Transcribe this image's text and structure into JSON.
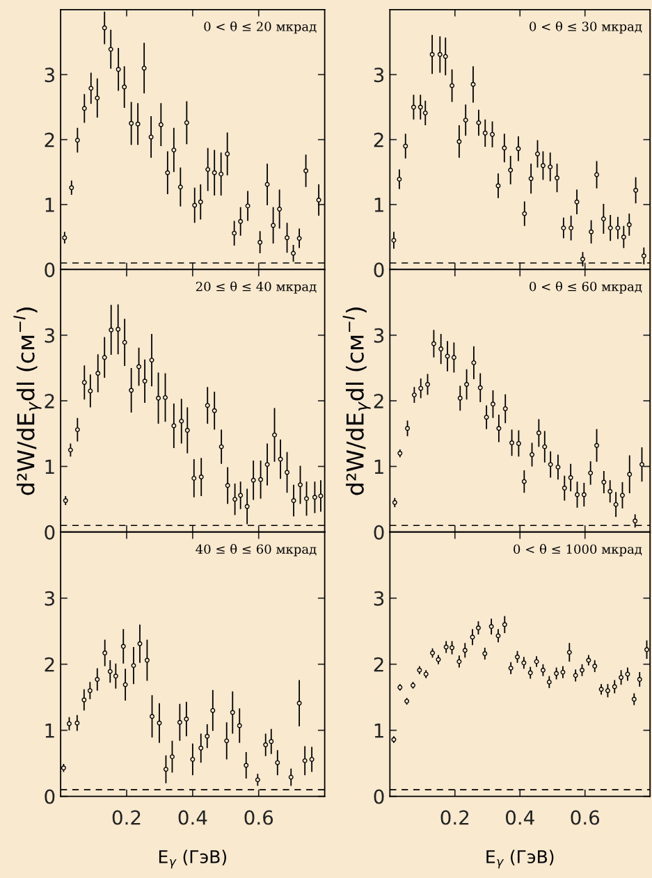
{
  "chart_data": [
    {
      "type": "scatter",
      "title": "0 < θ ≤ 20 мкрад",
      "xlim": [
        0,
        0.8
      ],
      "xticks": [
        {
          "value": 0.2,
          "label": null
        },
        {
          "value": 0.4,
          "label": null
        },
        {
          "value": 0.6,
          "label": null
        }
      ],
      "ylim": [
        0,
        4
      ],
      "yticks": [
        0,
        1,
        2,
        3
      ],
      "tick_labels": "y",
      "marker": "circle",
      "color": "#000000",
      "x": [
        0.012,
        0.033,
        0.051,
        0.072,
        0.092,
        0.111,
        0.133,
        0.152,
        0.175,
        0.193,
        0.214,
        0.234,
        0.253,
        0.274,
        0.304,
        0.324,
        0.343,
        0.363,
        0.382,
        0.406,
        0.424,
        0.446,
        0.466,
        0.486,
        0.505,
        0.526,
        0.545,
        0.567,
        0.604,
        0.626,
        0.644,
        0.663,
        0.686,
        0.705,
        0.723,
        0.743,
        0.782
      ],
      "values": [
        0.49,
        1.26,
        1.99,
        2.48,
        2.79,
        2.64,
        3.72,
        3.39,
        3.08,
        2.81,
        2.25,
        2.24,
        3.1,
        2.04,
        2.23,
        1.49,
        1.84,
        1.27,
        2.26,
        0.99,
        1.04,
        1.54,
        1.49,
        1.47,
        1.78,
        0.56,
        0.74,
        0.98,
        0.42,
        1.31,
        0.68,
        0.93,
        0.49,
        0.25,
        0.48,
        1.52,
        1.07
      ],
      "errors": [
        0.09,
        0.11,
        0.19,
        0.22,
        0.24,
        0.3,
        0.25,
        0.3,
        0.33,
        0.32,
        0.33,
        0.32,
        0.39,
        0.32,
        0.33,
        0.33,
        0.34,
        0.3,
        0.33,
        0.27,
        0.27,
        0.33,
        0.35,
        0.33,
        0.33,
        0.19,
        0.22,
        0.23,
        0.17,
        0.32,
        0.28,
        0.3,
        0.23,
        0.13,
        0.15,
        0.25,
        0.24
      ],
      "ref_lines": [
        {
          "axis": "y",
          "value": 0.1,
          "line_style": "dashed",
          "color": "#000000"
        }
      ]
    },
    {
      "type": "scatter",
      "title": "0 < θ ≤ 30 мкрад",
      "xlim": [
        0,
        0.8
      ],
      "xticks": [
        {
          "value": 0.2,
          "label": null
        },
        {
          "value": 0.4,
          "label": null
        },
        {
          "value": 0.6,
          "label": null
        }
      ],
      "ylim": [
        0,
        4
      ],
      "yticks": [
        0,
        1,
        2,
        3
      ],
      "tick_labels": "y",
      "marker": "circle",
      "color": "#000000",
      "x": [
        0.012,
        0.029,
        0.048,
        0.073,
        0.094,
        0.109,
        0.13,
        0.154,
        0.171,
        0.191,
        0.213,
        0.233,
        0.256,
        0.273,
        0.293,
        0.315,
        0.333,
        0.352,
        0.371,
        0.395,
        0.414,
        0.434,
        0.454,
        0.471,
        0.493,
        0.514,
        0.534,
        0.557,
        0.575,
        0.593,
        0.619,
        0.636,
        0.657,
        0.678,
        0.701,
        0.719,
        0.736,
        0.756,
        0.781
      ],
      "values": [
        0.45,
        1.39,
        1.9,
        2.5,
        2.5,
        2.41,
        3.31,
        3.31,
        3.28,
        2.83,
        1.97,
        2.3,
        2.85,
        2.26,
        2.1,
        2.08,
        1.29,
        1.87,
        1.53,
        1.86,
        0.86,
        1.4,
        1.78,
        1.6,
        1.58,
        1.41,
        0.64,
        0.64,
        1.04,
        0.16,
        0.58,
        1.46,
        0.78,
        0.64,
        0.64,
        0.5,
        0.69,
        1.22,
        0.21
      ],
      "errors": [
        0.13,
        0.15,
        0.19,
        0.19,
        0.19,
        0.19,
        0.3,
        0.28,
        0.29,
        0.25,
        0.25,
        0.24,
        0.28,
        0.2,
        0.21,
        0.2,
        0.19,
        0.22,
        0.22,
        0.19,
        0.19,
        0.23,
        0.21,
        0.22,
        0.22,
        0.22,
        0.16,
        0.19,
        0.19,
        0.11,
        0.18,
        0.21,
        0.23,
        0.2,
        0.17,
        0.17,
        0.17,
        0.2,
        0.13
      ],
      "ref_lines": [
        {
          "axis": "y",
          "value": 0.1,
          "line_style": "dashed",
          "color": "#000000"
        }
      ]
    },
    {
      "type": "scatter",
      "title": "20 ≤ θ ≤ 40 мкрад",
      "ylabel": "d²W/dE$_{γ}$dl (см$^{−I}$)",
      "xlim": [
        0,
        0.8
      ],
      "xticks": [
        {
          "value": 0.2,
          "label": null
        },
        {
          "value": 0.4,
          "label": null
        },
        {
          "value": 0.6,
          "label": null
        }
      ],
      "ylim": [
        0,
        4
      ],
      "yticks": [
        0,
        1,
        2,
        3
      ],
      "tick_labels": "y",
      "marker": "circle",
      "color": "#000000",
      "x": [
        0.015,
        0.03,
        0.051,
        0.072,
        0.09,
        0.113,
        0.133,
        0.153,
        0.174,
        0.194,
        0.214,
        0.237,
        0.255,
        0.276,
        0.296,
        0.317,
        0.343,
        0.366,
        0.384,
        0.404,
        0.426,
        0.445,
        0.466,
        0.487,
        0.506,
        0.528,
        0.545,
        0.565,
        0.584,
        0.606,
        0.626,
        0.648,
        0.666,
        0.686,
        0.706,
        0.726,
        0.745,
        0.77,
        0.788
      ],
      "values": [
        0.48,
        1.25,
        1.56,
        2.28,
        2.15,
        2.42,
        2.66,
        3.08,
        3.09,
        2.89,
        2.16,
        2.52,
        2.3,
        2.62,
        2.04,
        2.05,
        1.62,
        1.69,
        1.55,
        0.82,
        0.84,
        1.93,
        1.85,
        1.3,
        0.71,
        0.5,
        0.56,
        0.39,
        0.79,
        0.8,
        1.03,
        1.48,
        1.11,
        0.91,
        0.48,
        0.72,
        0.51,
        0.53,
        0.55
      ],
      "errors": [
        0.07,
        0.1,
        0.18,
        0.26,
        0.25,
        0.29,
        0.31,
        0.38,
        0.38,
        0.36,
        0.34,
        0.29,
        0.33,
        0.4,
        0.39,
        0.37,
        0.34,
        0.34,
        0.35,
        0.29,
        0.29,
        0.28,
        0.29,
        0.26,
        0.28,
        0.24,
        0.21,
        0.27,
        0.3,
        0.29,
        0.32,
        0.41,
        0.3,
        0.31,
        0.24,
        0.29,
        0.26,
        0.24,
        0.24
      ],
      "ref_lines": [
        {
          "axis": "y",
          "value": 0.1,
          "line_style": "dashed",
          "color": "#000000"
        }
      ]
    },
    {
      "type": "scatter",
      "title": "0 < θ ≤ 60 мкрад",
      "ylabel": "d²W/dE$_{γ}$dl (см$^{−I}$)",
      "xlim": [
        0,
        0.8
      ],
      "xticks": [
        {
          "value": 0.2,
          "label": null
        },
        {
          "value": 0.4,
          "label": null
        },
        {
          "value": 0.6,
          "label": null
        }
      ],
      "ylim": [
        0,
        4
      ],
      "yticks": [
        0,
        1,
        2,
        3
      ],
      "tick_labels": "y",
      "marker": "circle",
      "color": "#000000",
      "x": [
        0.015,
        0.031,
        0.054,
        0.075,
        0.095,
        0.116,
        0.135,
        0.157,
        0.177,
        0.197,
        0.216,
        0.236,
        0.258,
        0.278,
        0.297,
        0.317,
        0.335,
        0.355,
        0.375,
        0.396,
        0.413,
        0.437,
        0.458,
        0.476,
        0.494,
        0.517,
        0.537,
        0.556,
        0.576,
        0.597,
        0.617,
        0.636,
        0.658,
        0.677,
        0.695,
        0.715,
        0.737,
        0.754,
        0.775
      ],
      "values": [
        0.45,
        1.2,
        1.58,
        2.09,
        2.19,
        2.25,
        2.87,
        2.79,
        2.68,
        2.66,
        2.04,
        2.25,
        2.58,
        2.2,
        1.75,
        1.95,
        1.58,
        1.88,
        1.36,
        1.35,
        0.77,
        1.18,
        1.51,
        1.3,
        1.03,
        0.99,
        0.67,
        0.83,
        0.57,
        0.57,
        0.9,
        1.32,
        0.76,
        0.62,
        0.42,
        0.56,
        0.88,
        0.17,
        1.03
      ],
      "errors": [
        0.07,
        0.06,
        0.12,
        0.12,
        0.15,
        0.16,
        0.21,
        0.23,
        0.23,
        0.23,
        0.19,
        0.23,
        0.25,
        0.22,
        0.18,
        0.21,
        0.21,
        0.22,
        0.2,
        0.2,
        0.17,
        0.18,
        0.21,
        0.24,
        0.2,
        0.19,
        0.19,
        0.21,
        0.2,
        0.18,
        0.18,
        0.25,
        0.17,
        0.17,
        0.19,
        0.2,
        0.29,
        0.1,
        0.26
      ],
      "ref_lines": [
        {
          "axis": "y",
          "value": 0.1,
          "line_style": "dashed",
          "color": "#000000"
        }
      ]
    },
    {
      "type": "scatter",
      "title": "40 ≤ θ ≤ 60 мкрад",
      "xlabel": "E$_{γ}$ (ГэВ)",
      "xlim": [
        0,
        0.8
      ],
      "xticks": [
        {
          "value": 0.2,
          "label": "0.2"
        },
        {
          "value": 0.4,
          "label": "0.4"
        },
        {
          "value": 0.6,
          "label": "0.6"
        }
      ],
      "ylim": [
        0,
        4
      ],
      "yticks": [
        0,
        1,
        2,
        3
      ],
      "marker": "circle",
      "color": "#000000",
      "x": [
        0.009,
        0.026,
        0.05,
        0.071,
        0.089,
        0.111,
        0.134,
        0.15,
        0.167,
        0.19,
        0.196,
        0.221,
        0.24,
        0.262,
        0.277,
        0.299,
        0.319,
        0.338,
        0.361,
        0.381,
        0.4,
        0.425,
        0.444,
        0.461,
        0.503,
        0.521,
        0.542,
        0.562,
        0.597,
        0.621,
        0.638,
        0.657,
        0.698,
        0.723,
        0.74,
        0.761
      ],
      "values": [
        0.43,
        1.1,
        1.11,
        1.46,
        1.6,
        1.77,
        2.17,
        1.89,
        1.82,
        2.27,
        1.69,
        1.98,
        2.31,
        2.06,
        1.21,
        1.11,
        0.41,
        0.6,
        1.12,
        1.17,
        0.56,
        0.73,
        0.91,
        1.3,
        0.84,
        1.27,
        1.07,
        0.47,
        0.25,
        0.78,
        0.83,
        0.51,
        0.29,
        1.41,
        0.54,
        0.56
      ],
      "errors": [
        0.06,
        0.1,
        0.12,
        0.16,
        0.13,
        0.17,
        0.2,
        0.17,
        0.19,
        0.26,
        0.24,
        0.28,
        0.29,
        0.31,
        0.32,
        0.3,
        0.21,
        0.24,
        0.28,
        0.26,
        0.24,
        0.22,
        0.18,
        0.31,
        0.28,
        0.32,
        0.26,
        0.2,
        0.09,
        0.17,
        0.19,
        0.19,
        0.13,
        0.35,
        0.22,
        0.19
      ],
      "ref_lines": [
        {
          "axis": "y",
          "value": 0.1,
          "line_style": "dashed",
          "color": "#000000"
        }
      ]
    },
    {
      "type": "scatter",
      "title": "0 < θ ≤ 1000 мкрад",
      "xlabel": "E$_{γ}$ (ГэВ)",
      "xlim": [
        0,
        0.8
      ],
      "xticks": [
        {
          "value": 0.2,
          "label": "0.2"
        },
        {
          "value": 0.4,
          "label": "0.4"
        },
        {
          "value": 0.6,
          "label": "0.6"
        }
      ],
      "ylim": [
        0,
        4
      ],
      "yticks": [
        0,
        1,
        2,
        3
      ],
      "marker": "circle",
      "color": "#000000",
      "x": [
        0.012,
        0.031,
        0.052,
        0.071,
        0.091,
        0.111,
        0.131,
        0.149,
        0.173,
        0.191,
        0.213,
        0.231,
        0.254,
        0.272,
        0.292,
        0.312,
        0.333,
        0.353,
        0.372,
        0.392,
        0.412,
        0.432,
        0.451,
        0.471,
        0.49,
        0.512,
        0.532,
        0.552,
        0.571,
        0.591,
        0.611,
        0.63,
        0.65,
        0.67,
        0.691,
        0.711,
        0.731,
        0.751,
        0.768,
        0.79
      ],
      "values": [
        0.86,
        1.65,
        1.44,
        1.68,
        1.91,
        1.85,
        2.17,
        2.07,
        2.26,
        2.25,
        2.04,
        2.21,
        2.41,
        2.55,
        2.16,
        2.57,
        2.43,
        2.6,
        1.94,
        2.11,
        2.02,
        1.87,
        2.04,
        1.91,
        1.73,
        1.86,
        1.88,
        2.18,
        1.83,
        1.91,
        2.06,
        1.97,
        1.62,
        1.6,
        1.66,
        1.8,
        1.85,
        1.47,
        1.77,
        2.22
      ],
      "errors": [
        0.05,
        0.05,
        0.05,
        0.05,
        0.06,
        0.06,
        0.07,
        0.07,
        0.09,
        0.1,
        0.09,
        0.11,
        0.12,
        0.1,
        0.09,
        0.12,
        0.1,
        0.13,
        0.09,
        0.09,
        0.09,
        0.09,
        0.08,
        0.09,
        0.09,
        0.09,
        0.09,
        0.14,
        0.09,
        0.09,
        0.08,
        0.09,
        0.08,
        0.1,
        0.1,
        0.11,
        0.1,
        0.09,
        0.11,
        0.14
      ],
      "ref_lines": [
        {
          "axis": "y",
          "value": 0.1,
          "line_style": "dashed",
          "color": "#000000"
        }
      ]
    }
  ]
}
